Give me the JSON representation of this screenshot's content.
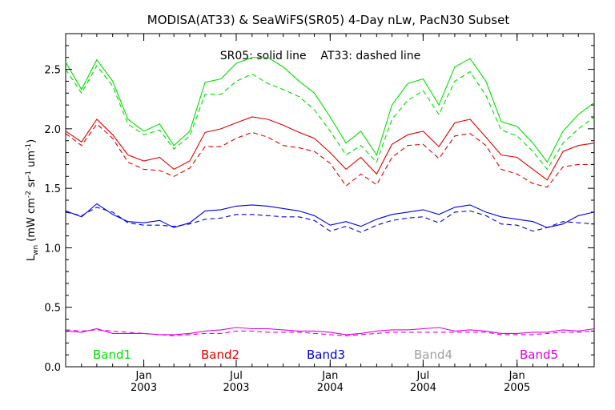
{
  "chart_data": {
    "type": "line",
    "title": "MODISA(AT33) & SeaWiFS(SR05) 4-Day nLw, PacN30 Subset",
    "annotation": "SR05: solid line    AT33: dashed line",
    "ylabel": {
      "main": "L",
      "sub": "wn",
      "unit_open": " (mW cm",
      "exp1": "-2",
      "mid1": " sr",
      "exp2": "-1",
      "mid2": " um",
      "exp3": "-1",
      "unit_close": ")"
    },
    "ylim": [
      0.0,
      2.8
    ],
    "yticks": [
      "0.0",
      "0.5",
      "1.0",
      "1.5",
      "2.0",
      "2.5"
    ],
    "ytick_values": [
      0.0,
      0.5,
      1.0,
      1.5,
      2.0,
      2.5
    ],
    "xlim": [
      "2002-08-01",
      "2005-06-01"
    ],
    "xticks": [
      {
        "date": "2003-01-01",
        "month": "Jan",
        "year": "2003"
      },
      {
        "date": "2003-07-01",
        "month": "Jul",
        "year": "2003"
      },
      {
        "date": "2004-01-01",
        "month": "Jan",
        "year": "2004"
      },
      {
        "date": "2004-07-01",
        "month": "Jul",
        "year": "2004"
      },
      {
        "date": "2005-01-01",
        "month": "Jan",
        "year": "2005"
      }
    ],
    "grid": false,
    "legend_placement": "bottom",
    "x": [
      "2002-08-01",
      "2002-09-01",
      "2002-10-01",
      "2002-11-01",
      "2002-12-01",
      "2003-01-01",
      "2003-02-01",
      "2003-03-01",
      "2003-04-01",
      "2003-05-01",
      "2003-06-01",
      "2003-07-01",
      "2003-08-01",
      "2003-09-01",
      "2003-10-01",
      "2003-11-01",
      "2003-12-01",
      "2004-01-01",
      "2004-02-01",
      "2004-03-01",
      "2004-04-01",
      "2004-05-01",
      "2004-06-01",
      "2004-07-01",
      "2004-08-01",
      "2004-09-01",
      "2004-10-01",
      "2004-11-01",
      "2004-12-01",
      "2005-01-01",
      "2005-02-01",
      "2005-03-01",
      "2005-04-01",
      "2005-05-01",
      "2005-06-01"
    ],
    "series": [
      {
        "name": "Band1",
        "sensor": "SR05",
        "dash": false,
        "color": "#00e000",
        "values": [
          2.56,
          2.33,
          2.58,
          2.4,
          2.08,
          1.98,
          2.04,
          1.86,
          1.98,
          2.39,
          2.42,
          2.55,
          2.6,
          2.6,
          2.52,
          2.4,
          2.3,
          2.1,
          1.88,
          1.98,
          1.78,
          2.2,
          2.38,
          2.42,
          2.2,
          2.52,
          2.59,
          2.4,
          2.06,
          2.02,
          1.88,
          1.72,
          1.98,
          2.12,
          2.22
        ]
      },
      {
        "name": "Band1",
        "sensor": "AT33",
        "dash": true,
        "color": "#00e000",
        "values": [
          2.5,
          2.3,
          2.53,
          2.36,
          2.04,
          1.95,
          1.99,
          1.83,
          1.94,
          2.29,
          2.29,
          2.4,
          2.46,
          2.38,
          2.33,
          2.27,
          2.16,
          1.98,
          1.78,
          1.86,
          1.72,
          2.08,
          2.24,
          2.32,
          2.12,
          2.4,
          2.48,
          2.28,
          1.99,
          1.94,
          1.81,
          1.66,
          1.88,
          2.0,
          2.1
        ]
      },
      {
        "name": "Band2",
        "sensor": "SR05",
        "dash": false,
        "color": "#e00000",
        "values": [
          1.98,
          1.89,
          2.08,
          1.95,
          1.78,
          1.73,
          1.76,
          1.66,
          1.73,
          1.97,
          2.0,
          2.05,
          2.1,
          2.08,
          2.03,
          1.97,
          1.92,
          1.8,
          1.66,
          1.76,
          1.62,
          1.87,
          1.95,
          1.98,
          1.85,
          2.05,
          2.08,
          1.93,
          1.78,
          1.76,
          1.66,
          1.57,
          1.81,
          1.86,
          1.88
        ]
      },
      {
        "name": "Band2",
        "sensor": "AT33",
        "dash": true,
        "color": "#e00000",
        "values": [
          1.96,
          1.86,
          2.04,
          1.92,
          1.72,
          1.66,
          1.65,
          1.6,
          1.67,
          1.85,
          1.85,
          1.92,
          1.97,
          1.93,
          1.86,
          1.84,
          1.81,
          1.71,
          1.52,
          1.62,
          1.53,
          1.76,
          1.86,
          1.87,
          1.75,
          1.94,
          1.96,
          1.86,
          1.66,
          1.62,
          1.54,
          1.51,
          1.68,
          1.7,
          1.7
        ]
      },
      {
        "name": "Band3",
        "sensor": "SR05",
        "dash": false,
        "color": "#0000e0",
        "values": [
          1.31,
          1.26,
          1.37,
          1.28,
          1.22,
          1.21,
          1.23,
          1.17,
          1.21,
          1.31,
          1.32,
          1.35,
          1.36,
          1.35,
          1.33,
          1.31,
          1.27,
          1.19,
          1.22,
          1.18,
          1.24,
          1.28,
          1.3,
          1.32,
          1.28,
          1.34,
          1.36,
          1.3,
          1.26,
          1.24,
          1.22,
          1.17,
          1.2,
          1.27,
          1.3
        ]
      },
      {
        "name": "Band3",
        "sensor": "AT33",
        "dash": true,
        "color": "#0000e0",
        "values": [
          1.3,
          1.27,
          1.34,
          1.3,
          1.21,
          1.19,
          1.19,
          1.18,
          1.2,
          1.24,
          1.25,
          1.28,
          1.28,
          1.27,
          1.26,
          1.26,
          1.23,
          1.14,
          1.18,
          1.13,
          1.19,
          1.23,
          1.25,
          1.26,
          1.21,
          1.3,
          1.31,
          1.27,
          1.2,
          1.19,
          1.14,
          1.17,
          1.22,
          1.21,
          1.2
        ]
      },
      {
        "name": "Band5",
        "sensor": "SR05",
        "dash": false,
        "color": "#e000e0",
        "values": [
          0.3,
          0.29,
          0.32,
          0.28,
          0.28,
          0.28,
          0.27,
          0.27,
          0.28,
          0.3,
          0.31,
          0.33,
          0.32,
          0.32,
          0.31,
          0.3,
          0.3,
          0.29,
          0.27,
          0.28,
          0.3,
          0.31,
          0.31,
          0.32,
          0.33,
          0.3,
          0.31,
          0.3,
          0.28,
          0.28,
          0.29,
          0.29,
          0.31,
          0.3,
          0.32
        ]
      },
      {
        "name": "Band5",
        "sensor": "AT33",
        "dash": true,
        "color": "#e000e0",
        "values": [
          0.31,
          0.3,
          0.31,
          0.3,
          0.29,
          0.28,
          0.27,
          0.26,
          0.27,
          0.28,
          0.28,
          0.3,
          0.3,
          0.29,
          0.29,
          0.29,
          0.28,
          0.27,
          0.26,
          0.27,
          0.28,
          0.29,
          0.29,
          0.29,
          0.29,
          0.29,
          0.29,
          0.29,
          0.27,
          0.27,
          0.27,
          0.28,
          0.29,
          0.29,
          0.3
        ]
      }
    ],
    "legend": [
      {
        "label": "Band1",
        "color": "#00e000"
      },
      {
        "label": "Band2",
        "color": "#e00000"
      },
      {
        "label": "Band3",
        "color": "#0000e0"
      },
      {
        "label": "Band4",
        "color": "#a0a0a0"
      },
      {
        "label": "Band5",
        "color": "#e000e0"
      }
    ]
  }
}
